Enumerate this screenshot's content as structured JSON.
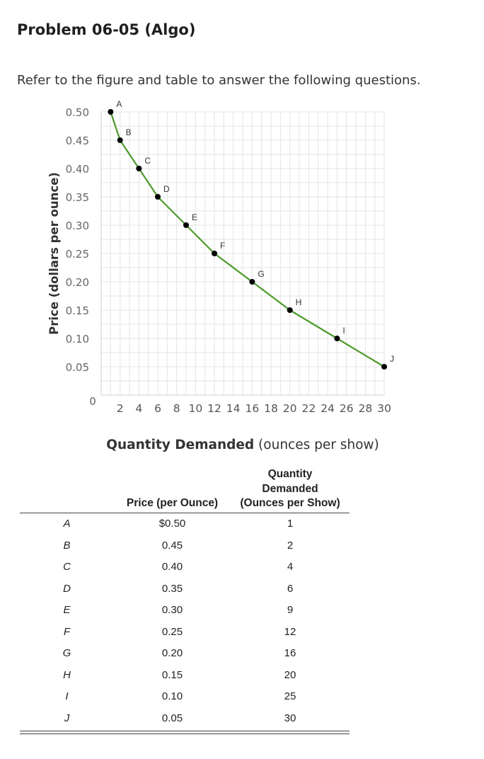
{
  "header": {
    "title": "Problem 06-05 (Algo)",
    "intro": "Refer to the figure and table to answer the following questions."
  },
  "chart_data": {
    "type": "line",
    "title": "",
    "ylabel": "Price (dollars per ounce)",
    "xlabel_bold": "Quantity Demanded",
    "xlabel_rest": " (ounces per show)",
    "xlim": [
      0,
      30
    ],
    "ylim": [
      0,
      0.5
    ],
    "x_ticks": [
      "2",
      "4",
      "6",
      "8",
      "10",
      "12",
      "14",
      "16",
      "18",
      "20",
      "22",
      "24",
      "26",
      "28",
      "30"
    ],
    "y_ticks": [
      "0.50",
      "0.45",
      "0.40",
      "0.35",
      "0.30",
      "0.25",
      "0.20",
      "0.15",
      "0.10",
      "0.05"
    ],
    "origin_label": "0",
    "grid": true,
    "line_color": "#4c9a2a",
    "point_color": "#000000",
    "points": [
      {
        "label": "A",
        "x": 1,
        "y": 0.5
      },
      {
        "label": "B",
        "x": 2,
        "y": 0.45
      },
      {
        "label": "C",
        "x": 4,
        "y": 0.4
      },
      {
        "label": "D",
        "x": 6,
        "y": 0.35
      },
      {
        "label": "E",
        "x": 9,
        "y": 0.3
      },
      {
        "label": "F",
        "x": 12,
        "y": 0.25
      },
      {
        "label": "G",
        "x": 16,
        "y": 0.2
      },
      {
        "label": "H",
        "x": 20,
        "y": 0.15
      },
      {
        "label": "I",
        "x": 25,
        "y": 0.1
      },
      {
        "label": "J",
        "x": 30,
        "y": 0.05
      }
    ]
  },
  "table": {
    "headers": {
      "price": "Price (per Ounce)",
      "qty_line1": "Quantity",
      "qty_line2": "Demanded",
      "qty_line3": "(Ounces per Show)"
    },
    "rows": [
      {
        "label": "A",
        "price": "$0.50",
        "qty": "1"
      },
      {
        "label": "B",
        "price": "0.45",
        "qty": "2"
      },
      {
        "label": "C",
        "price": "0.40",
        "qty": "4"
      },
      {
        "label": "D",
        "price": "0.35",
        "qty": "6"
      },
      {
        "label": "E",
        "price": "0.30",
        "qty": "9"
      },
      {
        "label": "F",
        "price": "0.25",
        "qty": "12"
      },
      {
        "label": "G",
        "price": "0.20",
        "qty": "16"
      },
      {
        "label": "H",
        "price": "0.15",
        "qty": "20"
      },
      {
        "label": "I",
        "price": "0.10",
        "qty": "25"
      },
      {
        "label": "J",
        "price": "0.05",
        "qty": "30"
      }
    ]
  }
}
